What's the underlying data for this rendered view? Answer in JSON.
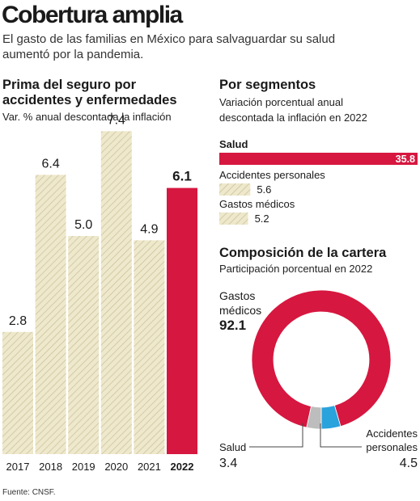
{
  "header": {
    "title": "Cobertura amplia",
    "subtitle_line1": "El gasto de las familias en México para salvaguardar su salud",
    "subtitle_line2": "aumentó por la pandemia."
  },
  "colors": {
    "highlight": "#d6173f",
    "hatch_fill": "#eee8cc",
    "hatch_line": "#c9bf95",
    "gray": "#bdbdbd",
    "blue": "#2aa2dc"
  },
  "footer": {
    "source": "Fuente: CNSF."
  },
  "chart_data": [
    {
      "type": "bar",
      "title_line1": "Prima del seguro por",
      "title_line2": "accidentes y enfermedades",
      "subtitle": "Var. % anual descontada la inflación",
      "categories": [
        "2017",
        "2018",
        "2019",
        "2020",
        "2021",
        "2022"
      ],
      "value_labels": [
        "2.8",
        "6.4",
        "5.0",
        "7.4",
        "4.9",
        "6.1"
      ],
      "values": [
        2.8,
        6.4,
        5.0,
        7.4,
        4.9,
        6.1
      ],
      "highlight_index": 5
    },
    {
      "type": "bar",
      "orientation": "horizontal",
      "title": "Por segmentos",
      "subtitle_line1": "Variación porcentual anual",
      "subtitle_line2": "descontada la inflación en 2022",
      "categories": [
        "Salud",
        "Accidentes personales",
        "Gastos médicos"
      ],
      "value_labels": [
        "35.8",
        "5.6",
        "5.2"
      ],
      "values": [
        35.8,
        5.6,
        5.2
      ]
    },
    {
      "type": "pie",
      "style": "donut",
      "title": "Composición de la cartera",
      "subtitle": "Participación porcentual en 2022",
      "slices": [
        {
          "label_line1": "Gastos",
          "label_line2": "médicos",
          "value_label": "92.1",
          "value": 92.1,
          "color": "#d6173f"
        },
        {
          "label_line1": "Salud",
          "label_line2": "",
          "value_label": "3.4",
          "value": 3.4,
          "color": "#bdbdbd"
        },
        {
          "label_line1": "Accidentes",
          "label_line2": "personales",
          "value_label": "4.5",
          "value": 4.5,
          "color": "#2aa2dc"
        }
      ]
    }
  ]
}
